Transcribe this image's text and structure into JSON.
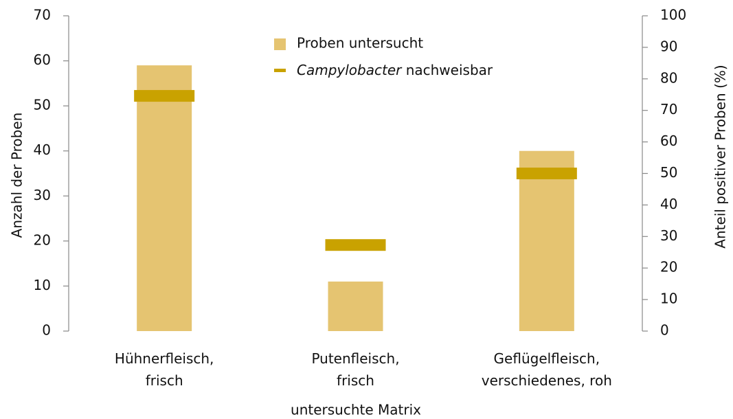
{
  "chart_data": {
    "type": "bar",
    "categories": [
      "Hühnerfleisch, frisch",
      "Putenfleisch, frisch",
      "Geflügelfleisch, verschiedenes, roh"
    ],
    "series": [
      {
        "name": "Proben untersucht",
        "color": "#e5c471",
        "values": [
          59,
          11,
          40
        ]
      },
      {
        "name": "Campylobacter nachweisbar",
        "color": "#c9a200",
        "axis": "y2",
        "values": [
          74.6,
          27.3,
          50
        ]
      }
    ],
    "x_label": "untersuchte Matrix",
    "y_label": "Anzahl der Proben",
    "y2_label": "Anteil positiver Proben (%)",
    "ylim": [
      0,
      70
    ],
    "yticks": [
      0,
      10,
      20,
      30,
      40,
      50,
      60,
      70
    ],
    "y2lim": [
      0,
      100
    ],
    "y2ticks": [
      0,
      10,
      20,
      30,
      40,
      50,
      60,
      70,
      80,
      90,
      100
    ],
    "legend": "top"
  }
}
